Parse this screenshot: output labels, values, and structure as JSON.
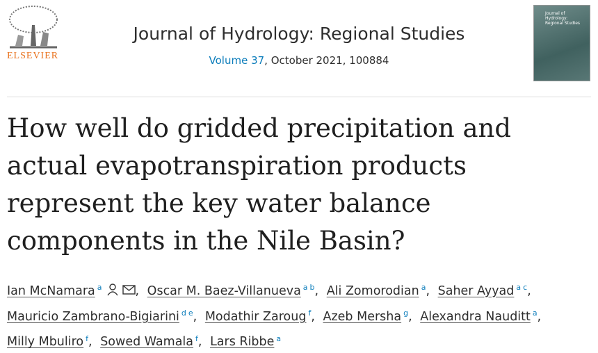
{
  "publisher": {
    "name": "ELSEVIER"
  },
  "journal": {
    "name": "Journal of Hydrology: Regional Studies",
    "volume": "Volume 37",
    "issue_info": ", October 2021, 100884"
  },
  "cover": {
    "title": "Journal of Hydrology: Regional Studies"
  },
  "article": {
    "title": "How well do gridded precipitation and actual evapotranspiration products represent the key water balance components in the Nile Basin?"
  },
  "authors": {
    "separator": ",",
    "list": [
      {
        "name": "Ian McNamara",
        "affiliations": [
          "a"
        ],
        "contact": true
      },
      {
        "name": "Oscar M. Baez-Villanueva",
        "affiliations": [
          "a",
          "b"
        ]
      },
      {
        "name": "Ali Zomorodian",
        "affiliations": [
          "a"
        ]
      },
      {
        "name": "Saher Ayyad",
        "affiliations": [
          "a",
          "c"
        ]
      },
      {
        "name": "Mauricio Zambrano-Bigiarini",
        "affiliations": [
          "d",
          "e"
        ]
      },
      {
        "name": "Modathir Zaroug",
        "affiliations": [
          "f"
        ]
      },
      {
        "name": "Azeb Mersha",
        "affiliations": [
          "g"
        ]
      },
      {
        "name": "Alexandra Nauditt",
        "affiliations": [
          "a"
        ]
      },
      {
        "name": "Milly Mbuliro",
        "affiliations": [
          "f"
        ]
      },
      {
        "name": "Sowed Wamala",
        "affiliations": [
          "f"
        ]
      },
      {
        "name": "Lars Ribbe",
        "affiliations": [
          "a"
        ]
      }
    ]
  }
}
